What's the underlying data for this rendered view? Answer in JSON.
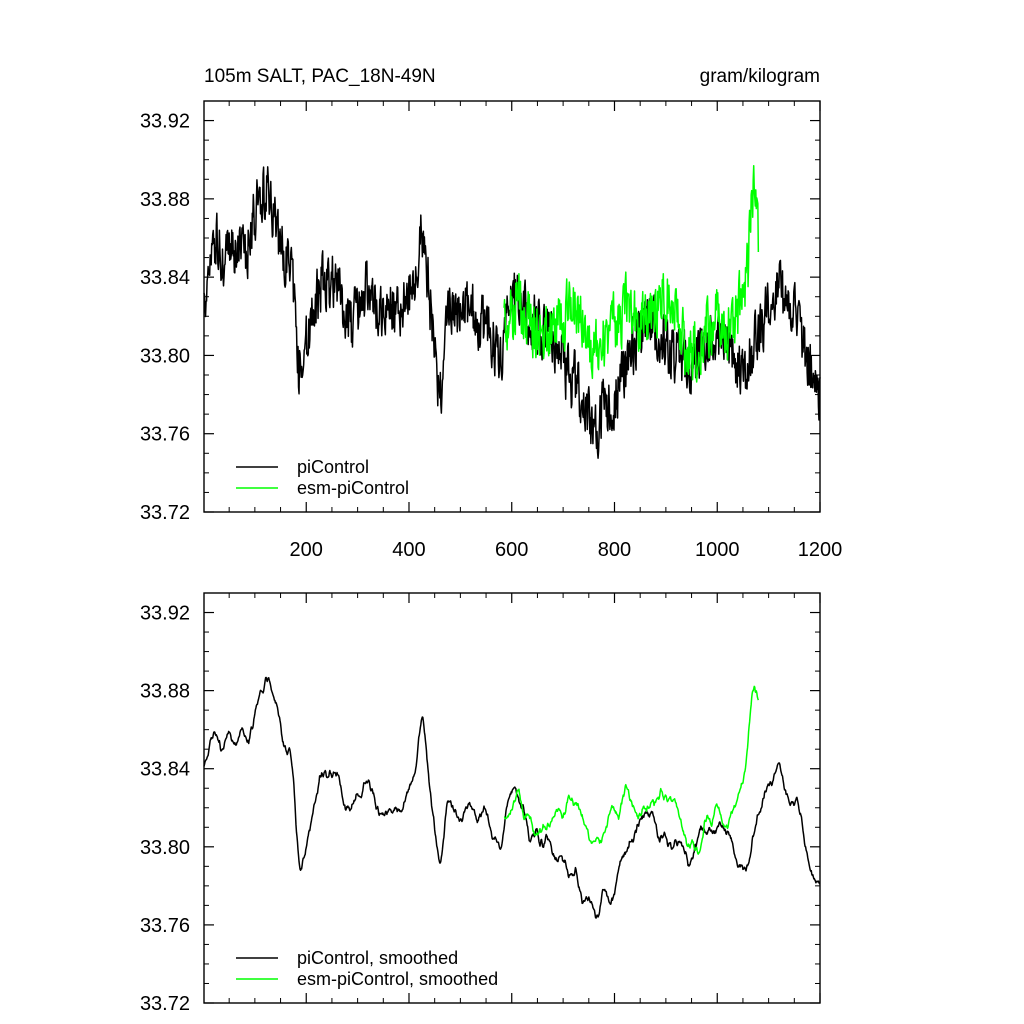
{
  "chart_data": [
    {
      "type": "line",
      "title": "105m SALT, PAC_18N-49N",
      "units": "gram/kilogram",
      "xlim": [
        1,
        1200
      ],
      "ylim": [
        33.72,
        33.93
      ],
      "xticks": [
        200,
        400,
        600,
        800,
        1000,
        1200
      ],
      "xtick_labels": [
        "200",
        "400",
        "600",
        "800",
        "1000",
        "1200"
      ],
      "yticks": [
        33.72,
        33.76,
        33.8,
        33.84,
        33.88,
        33.92
      ],
      "ytick_labels": [
        "33.72",
        "33.76",
        "33.80",
        "33.84",
        "33.88",
        "33.92"
      ],
      "legend_position": "bottom-left",
      "series": [
        {
          "name": "piControl",
          "color": "#000000",
          "x_start": 1,
          "x_step": 1,
          "noise": 0.016,
          "y_knots": [
            [
              1,
              33.825
            ],
            [
              20,
              33.862
            ],
            [
              40,
              33.845
            ],
            [
              60,
              33.855
            ],
            [
              80,
              33.848
            ],
            [
              100,
              33.875
            ],
            [
              125,
              33.885
            ],
            [
              150,
              33.855
            ],
            [
              170,
              33.845
            ],
            [
              185,
              33.795
            ],
            [
              200,
              33.805
            ],
            [
              230,
              33.84
            ],
            [
              260,
              33.835
            ],
            [
              290,
              33.815
            ],
            [
              320,
              33.835
            ],
            [
              350,
              33.82
            ],
            [
              380,
              33.825
            ],
            [
              410,
              33.835
            ],
            [
              425,
              33.865
            ],
            [
              440,
              33.83
            ],
            [
              460,
              33.78
            ],
            [
              480,
              33.825
            ],
            [
              500,
              33.825
            ],
            [
              530,
              33.82
            ],
            [
              580,
              33.8
            ],
            [
              600,
              33.83
            ],
            [
              620,
              33.825
            ],
            [
              650,
              33.815
            ],
            [
              680,
              33.81
            ],
            [
              710,
              33.79
            ],
            [
              740,
              33.78
            ],
            [
              760,
              33.76
            ],
            [
              780,
              33.775
            ],
            [
              800,
              33.775
            ],
            [
              830,
              33.8
            ],
            [
              860,
              33.82
            ],
            [
              890,
              33.81
            ],
            [
              920,
              33.8
            ],
            [
              950,
              33.795
            ],
            [
              980,
              33.81
            ],
            [
              1000,
              33.81
            ],
            [
              1030,
              33.8
            ],
            [
              1050,
              33.79
            ],
            [
              1080,
              33.81
            ],
            [
              1110,
              33.835
            ],
            [
              1130,
              33.83
            ],
            [
              1150,
              33.82
            ],
            [
              1170,
              33.8
            ],
            [
              1185,
              33.79
            ],
            [
              1200,
              33.78
            ]
          ]
        },
        {
          "name": "esm-piControl",
          "color": "#00ff00",
          "x_start": 585,
          "x_step": 1,
          "noise": 0.017,
          "y_knots": [
            [
              585,
              33.815
            ],
            [
              610,
              33.83
            ],
            [
              640,
              33.815
            ],
            [
              670,
              33.81
            ],
            [
              700,
              33.82
            ],
            [
              720,
              33.83
            ],
            [
              740,
              33.815
            ],
            [
              760,
              33.8
            ],
            [
              780,
              33.805
            ],
            [
              800,
              33.815
            ],
            [
              820,
              33.825
            ],
            [
              840,
              33.82
            ],
            [
              860,
              33.815
            ],
            [
              880,
              33.825
            ],
            [
              900,
              33.83
            ],
            [
              920,
              33.825
            ],
            [
              940,
              33.8
            ],
            [
              960,
              33.805
            ],
            [
              980,
              33.815
            ],
            [
              1000,
              33.82
            ],
            [
              1020,
              33.815
            ],
            [
              1040,
              33.82
            ],
            [
              1060,
              33.845
            ],
            [
              1068,
              33.89
            ],
            [
              1080,
              33.855
            ]
          ]
        }
      ]
    },
    {
      "type": "line",
      "title": "",
      "units": "",
      "xlim": [
        1,
        1200
      ],
      "ylim": [
        33.72,
        33.93
      ],
      "xticks": [
        200,
        400,
        600,
        800,
        1000,
        1200
      ],
      "xtick_labels": [],
      "yticks": [
        33.72,
        33.76,
        33.8,
        33.84,
        33.88,
        33.92
      ],
      "ytick_labels": [
        "33.72",
        "33.76",
        "33.80",
        "33.84",
        "33.88",
        "33.92"
      ],
      "legend_position": "bottom-left",
      "series": [
        {
          "name": "piControl, smoothed",
          "color": "#000000",
          "x_start": 1,
          "x_step": 1,
          "noise": 0.016,
          "smooth": 6,
          "y_knots": [
            [
              1,
              33.84
            ],
            [
              20,
              33.862
            ],
            [
              40,
              33.85
            ],
            [
              60,
              33.855
            ],
            [
              80,
              33.85
            ],
            [
              100,
              33.87
            ],
            [
              125,
              33.89
            ],
            [
              150,
              33.86
            ],
            [
              170,
              33.845
            ],
            [
              185,
              33.79
            ],
            [
              200,
              33.8
            ],
            [
              230,
              33.84
            ],
            [
              260,
              33.835
            ],
            [
              290,
              33.815
            ],
            [
              320,
              33.835
            ],
            [
              350,
              33.815
            ],
            [
              380,
              33.82
            ],
            [
              410,
              33.835
            ],
            [
              425,
              33.875
            ],
            [
              440,
              33.83
            ],
            [
              460,
              33.79
            ],
            [
              480,
              33.825
            ],
            [
              500,
              33.815
            ],
            [
              530,
              33.82
            ],
            [
              580,
              33.8
            ],
            [
              600,
              33.83
            ],
            [
              620,
              33.82
            ],
            [
              650,
              33.805
            ],
            [
              680,
              33.8
            ],
            [
              710,
              33.785
            ],
            [
              740,
              33.78
            ],
            [
              760,
              33.765
            ],
            [
              780,
              33.775
            ],
            [
              800,
              33.78
            ],
            [
              830,
              33.8
            ],
            [
              860,
              33.82
            ],
            [
              890,
              33.81
            ],
            [
              920,
              33.8
            ],
            [
              950,
              33.795
            ],
            [
              980,
              33.815
            ],
            [
              1000,
              33.81
            ],
            [
              1030,
              33.8
            ],
            [
              1050,
              33.785
            ],
            [
              1080,
              33.815
            ],
            [
              1110,
              33.845
            ],
            [
              1130,
              33.83
            ],
            [
              1150,
              33.82
            ],
            [
              1170,
              33.8
            ],
            [
              1185,
              33.785
            ],
            [
              1200,
              33.78
            ]
          ]
        },
        {
          "name": "esm-piControl, smoothed",
          "color": "#00ff00",
          "x_start": 585,
          "x_step": 1,
          "noise": 0.017,
          "smooth": 6,
          "y_knots": [
            [
              585,
              33.815
            ],
            [
              610,
              33.83
            ],
            [
              640,
              33.81
            ],
            [
              670,
              33.81
            ],
            [
              700,
              33.82
            ],
            [
              720,
              33.83
            ],
            [
              740,
              33.815
            ],
            [
              760,
              33.8
            ],
            [
              780,
              33.805
            ],
            [
              800,
              33.815
            ],
            [
              820,
              33.825
            ],
            [
              840,
              33.82
            ],
            [
              860,
              33.815
            ],
            [
              880,
              33.825
            ],
            [
              900,
              33.83
            ],
            [
              920,
              33.825
            ],
            [
              940,
              33.8
            ],
            [
              960,
              33.805
            ],
            [
              980,
              33.815
            ],
            [
              1000,
              33.82
            ],
            [
              1020,
              33.815
            ],
            [
              1040,
              33.82
            ],
            [
              1060,
              33.845
            ],
            [
              1068,
              33.89
            ],
            [
              1080,
              33.855
            ]
          ]
        }
      ]
    }
  ]
}
